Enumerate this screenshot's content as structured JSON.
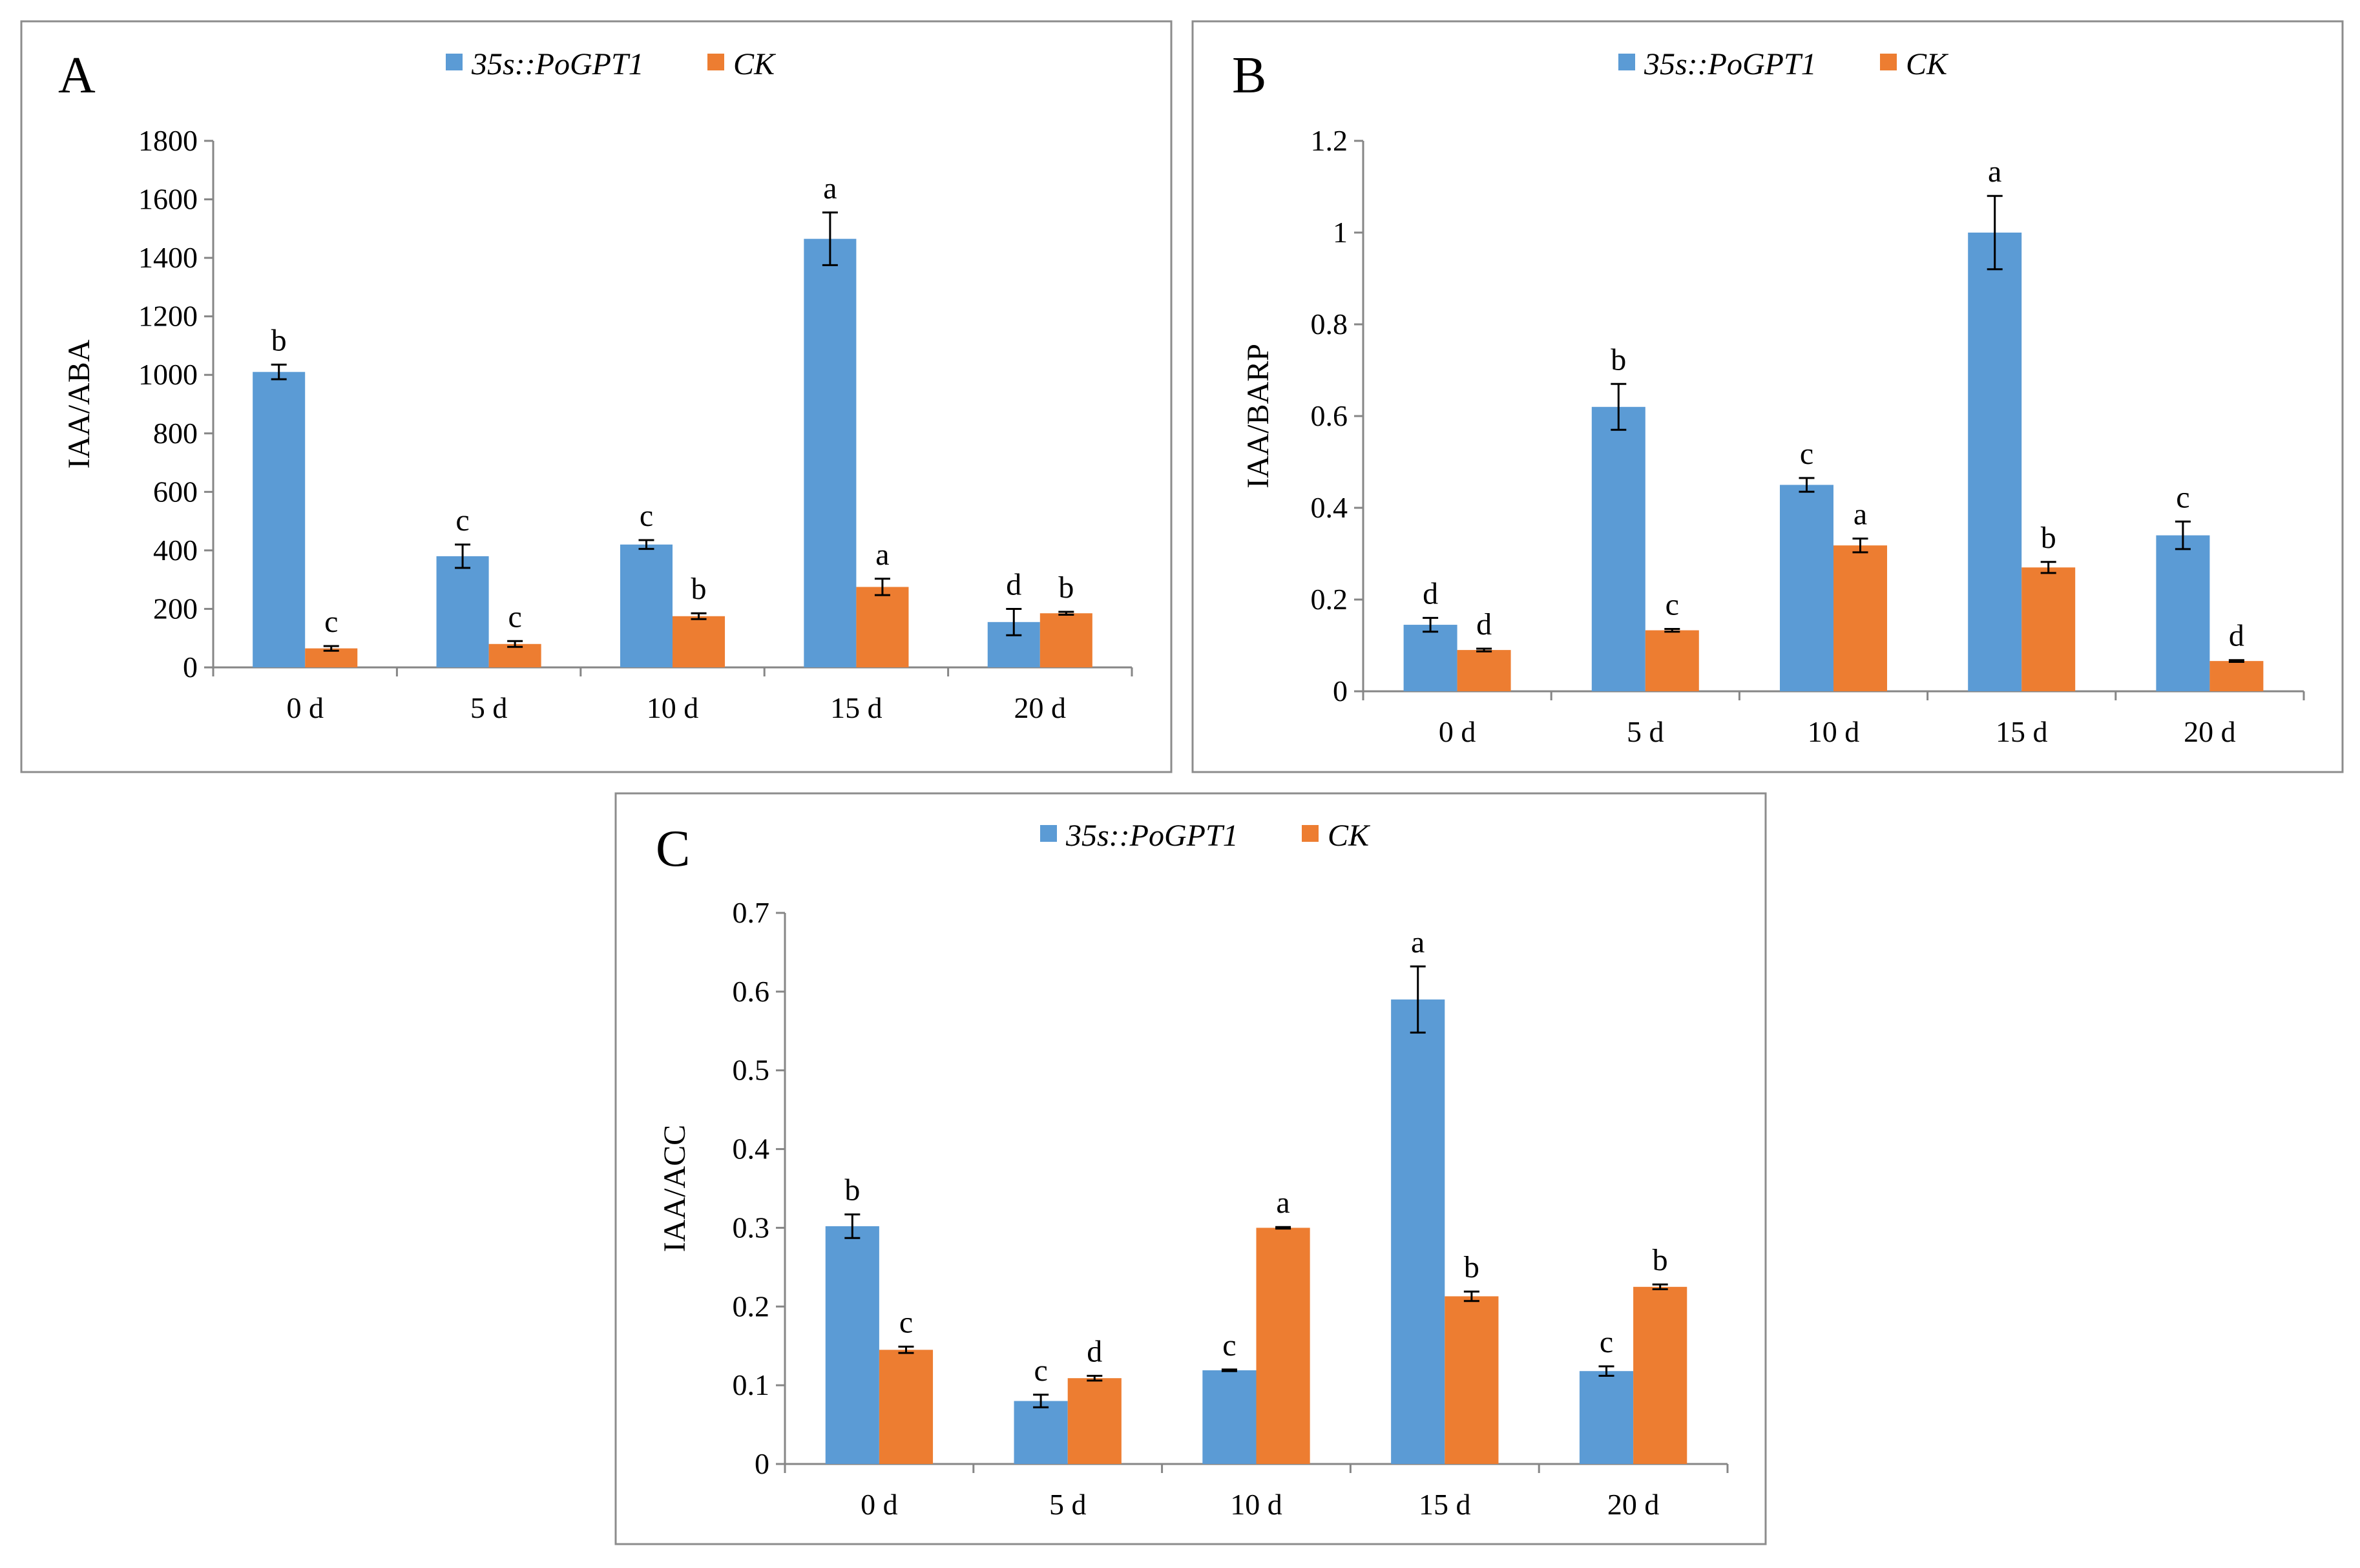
{
  "chart_data": [
    {
      "type": "bar",
      "panel": "A",
      "ylabel": "IAA/ABA",
      "xlabel": "",
      "ylim": [
        0,
        1800
      ],
      "yticks": [
        0,
        200,
        400,
        600,
        800,
        1000,
        1200,
        1400,
        1600,
        1800
      ],
      "legend_position": "top",
      "categories": [
        "0 d",
        "5 d",
        "10 d",
        "15 d",
        "20 d"
      ],
      "series": [
        {
          "name": "35s::PoGPT1",
          "color": "#5b9bd5",
          "values": [
            1010,
            380,
            420,
            1465,
            155
          ],
          "errors": [
            25,
            40,
            15,
            90,
            45
          ],
          "labels": [
            "b",
            "c",
            "c",
            "a",
            "d"
          ]
        },
        {
          "name": "CK",
          "color": "#ed7d31",
          "values": [
            65,
            80,
            175,
            275,
            185
          ],
          "errors": [
            8,
            10,
            10,
            28,
            5
          ],
          "labels": [
            "c",
            "c",
            "b",
            "a",
            "b"
          ]
        }
      ]
    },
    {
      "type": "bar",
      "panel": "B",
      "ylabel": "IAA/BARP",
      "xlabel": "",
      "ylim": [
        0,
        1.2
      ],
      "yticks": [
        0,
        0.2,
        0.4,
        0.6,
        0.8,
        1,
        1.2
      ],
      "legend_position": "top",
      "categories": [
        "0 d",
        "5 d",
        "10 d",
        "15 d",
        "20 d"
      ],
      "series": [
        {
          "name": "35s::PoGPT1",
          "color": "#5b9bd5",
          "values": [
            0.145,
            0.62,
            0.45,
            1.0,
            0.34
          ],
          "errors": [
            0.015,
            0.05,
            0.015,
            0.08,
            0.03
          ],
          "labels": [
            "d",
            "b",
            "c",
            "a",
            "c"
          ]
        },
        {
          "name": "CK",
          "color": "#ed7d31",
          "values": [
            0.09,
            0.133,
            0.318,
            0.27,
            0.066
          ],
          "errors": [
            0.003,
            0.003,
            0.015,
            0.012,
            0.002
          ],
          "labels": [
            "d",
            "c",
            "a",
            "b",
            "d"
          ]
        }
      ]
    },
    {
      "type": "bar",
      "panel": "C",
      "ylabel": "IAA/ACC",
      "xlabel": "",
      "ylim": [
        0,
        0.7
      ],
      "yticks": [
        0,
        0.1,
        0.2,
        0.3,
        0.4,
        0.5,
        0.6,
        0.7
      ],
      "legend_position": "top",
      "categories": [
        "0 d",
        "5 d",
        "10 d",
        "15 d",
        "20 d"
      ],
      "series": [
        {
          "name": "35s::PoGPT1",
          "color": "#5b9bd5",
          "values": [
            0.302,
            0.08,
            0.119,
            0.59,
            0.118
          ],
          "errors": [
            0.015,
            0.008,
            0.001,
            0.042,
            0.006
          ],
          "labels": [
            "b",
            "c",
            "c",
            "a",
            "c"
          ]
        },
        {
          "name": "CK",
          "color": "#ed7d31",
          "values": [
            0.145,
            0.109,
            0.3,
            0.213,
            0.225
          ],
          "errors": [
            0.004,
            0.003,
            0.001,
            0.006,
            0.003
          ],
          "labels": [
            "c",
            "d",
            "a",
            "b",
            "b"
          ]
        }
      ]
    }
  ]
}
